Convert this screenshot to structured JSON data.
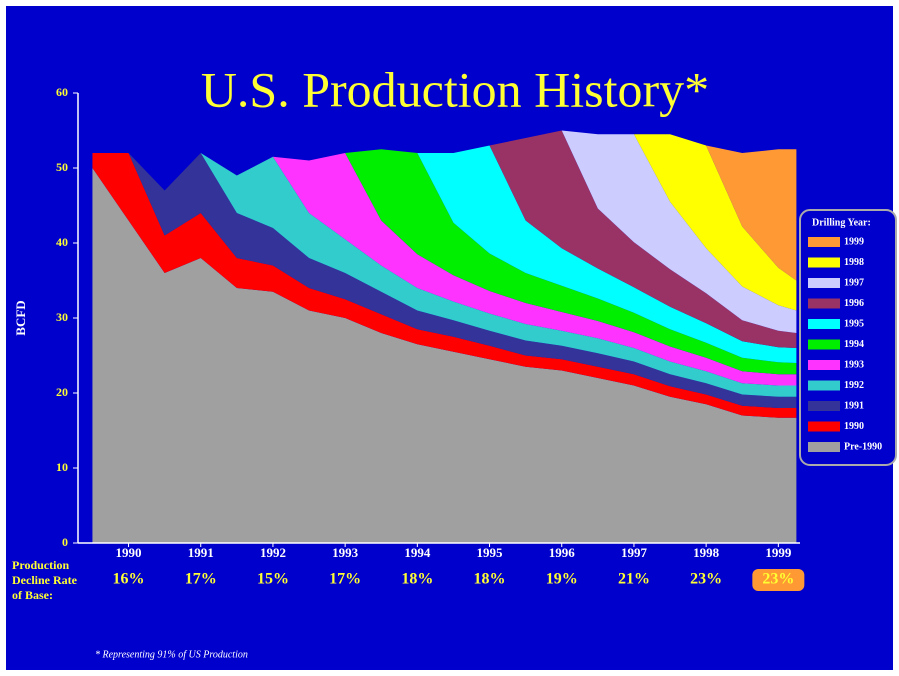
{
  "chart_data": {
    "type": "stacked_area",
    "title": "U.S. Production History*",
    "y_label": "BCFD",
    "legend_title": "Drilling Year:",
    "legend_position": "right",
    "decline_label": [
      "Production",
      "Decline Rate",
      "of Base:"
    ],
    "decline_rates": [
      "16%",
      "17%",
      "15%",
      "17%",
      "18%",
      "18%",
      "19%",
      "21%",
      "23%",
      "23%"
    ],
    "highlight_rate_color": "#ff9933",
    "footnote": "* Representing 91% of US Production",
    "xlim": [
      1989.8,
      1999.8
    ],
    "xticks": [
      {
        "value": 1990.5,
        "label": "1990"
      },
      {
        "value": 1991.5,
        "label": "1991"
      },
      {
        "value": 1992.5,
        "label": "1992"
      },
      {
        "value": 1993.5,
        "label": "1993"
      },
      {
        "value": 1994.5,
        "label": "1994"
      },
      {
        "value": 1995.5,
        "label": "1995"
      },
      {
        "value": 1996.5,
        "label": "1996"
      },
      {
        "value": 1997.5,
        "label": "1997"
      },
      {
        "value": 1998.5,
        "label": "1998"
      },
      {
        "value": 1999.5,
        "label": "1999"
      }
    ],
    "ylim": [
      0,
      60
    ],
    "yticks": [
      0,
      10,
      20,
      30,
      40,
      50,
      60
    ],
    "x": [
      1990,
      1990.5,
      1991,
      1991.5,
      1992,
      1992.5,
      1993,
      1993.5,
      1994,
      1994.5,
      1995,
      1995.5,
      1996,
      1996.5,
      1997,
      1997.5,
      1998,
      1998.5,
      1999,
      1999.5,
      1999.75
    ],
    "series": [
      {
        "name": "Pre-1990",
        "color": "#a0a0a0",
        "values": [
          50,
          43,
          36,
          38,
          34,
          33.5,
          31,
          30,
          28,
          26.5,
          25.5,
          24.5,
          23.5,
          23,
          22,
          21,
          19.5,
          18.5,
          17,
          16.7,
          16.7
        ]
      },
      {
        "name": "1990",
        "color": "#ff0000",
        "values": [
          2,
          9,
          5,
          6,
          4,
          3.5,
          3,
          2.5,
          2.5,
          2,
          2,
          1.8,
          1.5,
          1.5,
          1.5,
          1.5,
          1.4,
          1.3,
          1.3,
          1.3,
          1.3
        ]
      },
      {
        "name": "1991",
        "color": "#333399",
        "values": [
          0,
          0,
          6,
          8,
          6,
          5,
          4,
          3.5,
          3,
          2.5,
          2.2,
          2,
          2,
          1.8,
          1.8,
          1.7,
          1.6,
          1.5,
          1.5,
          1.5,
          1.5
        ]
      },
      {
        "name": "1992",
        "color": "#33cccc",
        "values": [
          0,
          0,
          0,
          0,
          5,
          9.5,
          6,
          4.5,
          3.5,
          3,
          2.5,
          2.3,
          2.2,
          2,
          2,
          1.8,
          1.7,
          1.6,
          1.5,
          1.5,
          1.5
        ]
      },
      {
        "name": "1993",
        "color": "#ff33ff",
        "values": [
          0,
          0,
          0,
          0,
          0,
          0,
          7,
          11.5,
          6,
          4.5,
          3.5,
          3,
          2.8,
          2.5,
          2.3,
          2.1,
          2,
          1.8,
          1.6,
          1.5,
          1.5
        ]
      },
      {
        "name": "1994",
        "color": "#00ee00",
        "values": [
          0,
          0,
          0,
          0,
          0,
          0,
          0,
          0,
          9.5,
          13.5,
          7,
          5,
          4,
          3.5,
          3,
          2.6,
          2.3,
          2,
          1.8,
          1.6,
          1.5
        ]
      },
      {
        "name": "1995",
        "color": "#00ffff",
        "values": [
          0,
          0,
          0,
          0,
          0,
          0,
          0,
          0,
          0,
          0,
          9.3,
          14.4,
          7,
          5,
          4,
          3.4,
          3,
          2.6,
          2.2,
          2,
          2
        ]
      },
      {
        "name": "1996",
        "color": "#993366",
        "values": [
          0,
          0,
          0,
          0,
          0,
          0,
          0,
          0,
          0,
          0,
          0,
          0,
          11,
          15.7,
          8,
          6,
          5,
          4,
          2.8,
          2.2,
          2
        ]
      },
      {
        "name": "1997",
        "color": "#ccccff",
        "values": [
          0,
          0,
          0,
          0,
          0,
          0,
          0,
          0,
          0,
          0,
          0,
          0,
          0,
          0,
          9.9,
          14.4,
          9,
          6,
          4.5,
          3.4,
          3
        ]
      },
      {
        "name": "1998",
        "color": "#ffff00",
        "values": [
          0,
          0,
          0,
          0,
          0,
          0,
          0,
          0,
          0,
          0,
          0,
          0,
          0,
          0,
          0,
          0,
          9,
          13.7,
          8,
          5,
          4
        ]
      },
      {
        "name": "1999",
        "color": "#ff9933",
        "values": [
          0,
          0,
          0,
          0,
          0,
          0,
          0,
          0,
          0,
          0,
          0,
          0,
          0,
          0,
          0,
          0,
          0,
          0,
          9.8,
          15.8,
          17.5
        ]
      }
    ]
  }
}
